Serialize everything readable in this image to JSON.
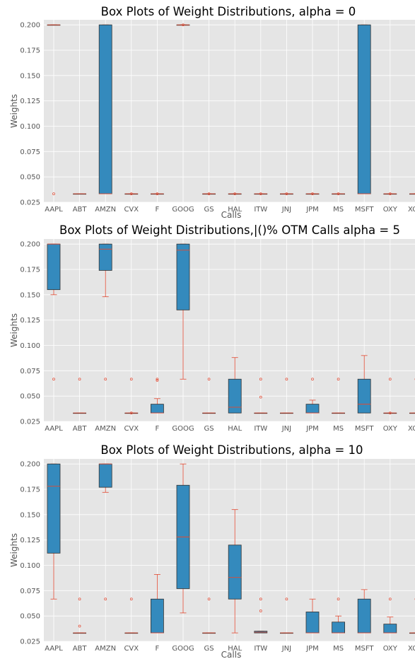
{
  "colors": {
    "background": "#e5e5e5",
    "grid": "#ffffff",
    "box_fill": "#348abd",
    "box_edge": "#333333",
    "median": "#e24a33",
    "whisker": "#e24a33",
    "flier": "#e24a33"
  },
  "chart_data": [
    {
      "type": "box",
      "title": "Box Plots of Weight Distributions, alpha = 0",
      "xlabel": "Calls",
      "ylabel": "Weights",
      "ylim": [
        0.025,
        0.205
      ],
      "yticks": [
        "0.025",
        "0.050",
        "0.075",
        "0.100",
        "0.125",
        "0.150",
        "0.175",
        "0.200"
      ],
      "grid": true,
      "categories": [
        "AAPL",
        "ABT",
        "AMZN",
        "CVX",
        "F",
        "GOOG",
        "GS",
        "HAL",
        "ITW",
        "JNJ",
        "JPM",
        "MS",
        "MSFT",
        "OXY",
        "XOM"
      ],
      "boxes": [
        {
          "q1": 0.2,
          "median": 0.2,
          "q3": 0.2,
          "whisker_low": 0.2,
          "whisker_high": 0.2,
          "fliers": [
            0.0333
          ]
        },
        {
          "q1": 0.0333,
          "median": 0.0333,
          "q3": 0.0333,
          "whisker_low": 0.0333,
          "whisker_high": 0.0333,
          "fliers": []
        },
        {
          "q1": 0.0333,
          "median": 0.0333,
          "q3": 0.2,
          "whisker_low": 0.0333,
          "whisker_high": 0.2,
          "fliers": []
        },
        {
          "q1": 0.0333,
          "median": 0.0333,
          "q3": 0.0333,
          "whisker_low": 0.0333,
          "whisker_high": 0.0333,
          "fliers": [
            0.0333
          ]
        },
        {
          "q1": 0.0333,
          "median": 0.0333,
          "q3": 0.0333,
          "whisker_low": 0.0333,
          "whisker_high": 0.0333,
          "fliers": [
            0.0333
          ]
        },
        {
          "q1": 0.2,
          "median": 0.2,
          "q3": 0.2,
          "whisker_low": 0.2,
          "whisker_high": 0.2,
          "fliers": [
            0.2
          ]
        },
        {
          "q1": 0.0333,
          "median": 0.0333,
          "q3": 0.0333,
          "whisker_low": 0.0333,
          "whisker_high": 0.0333,
          "fliers": [
            0.0333
          ]
        },
        {
          "q1": 0.0333,
          "median": 0.0333,
          "q3": 0.0333,
          "whisker_low": 0.0333,
          "whisker_high": 0.0333,
          "fliers": [
            0.0333
          ]
        },
        {
          "q1": 0.0333,
          "median": 0.0333,
          "q3": 0.0333,
          "whisker_low": 0.0333,
          "whisker_high": 0.0333,
          "fliers": [
            0.0333
          ]
        },
        {
          "q1": 0.0333,
          "median": 0.0333,
          "q3": 0.0333,
          "whisker_low": 0.0333,
          "whisker_high": 0.0333,
          "fliers": [
            0.0333
          ]
        },
        {
          "q1": 0.0333,
          "median": 0.0333,
          "q3": 0.0333,
          "whisker_low": 0.0333,
          "whisker_high": 0.0333,
          "fliers": [
            0.0333
          ]
        },
        {
          "q1": 0.0333,
          "median": 0.0333,
          "q3": 0.0333,
          "whisker_low": 0.0333,
          "whisker_high": 0.0333,
          "fliers": [
            0.0333
          ]
        },
        {
          "q1": 0.0333,
          "median": 0.0333,
          "q3": 0.2,
          "whisker_low": 0.0333,
          "whisker_high": 0.2,
          "fliers": []
        },
        {
          "q1": 0.0333,
          "median": 0.0333,
          "q3": 0.0333,
          "whisker_low": 0.0333,
          "whisker_high": 0.0333,
          "fliers": [
            0.0333
          ]
        },
        {
          "q1": 0.0333,
          "median": 0.0333,
          "q3": 0.0333,
          "whisker_low": 0.0333,
          "whisker_high": 0.0333,
          "fliers": [
            0.0333
          ]
        }
      ]
    },
    {
      "type": "box",
      "title": "Box Plots of Weight Distributions,|()% OTM Calls alpha = 5",
      "xlabel": "",
      "ylabel": "Weights",
      "ylim": [
        0.025,
        0.205
      ],
      "yticks": [
        "0.025",
        "0.050",
        "0.075",
        "0.100",
        "0.125",
        "0.150",
        "0.175",
        "0.200"
      ],
      "grid": true,
      "categories": [
        "AAPL",
        "ABT",
        "AMZN",
        "CVX",
        "F",
        "GOOG",
        "GS",
        "HAL",
        "ITW",
        "JNJ",
        "JPM",
        "MS",
        "MSFT",
        "OXY",
        "XOM"
      ],
      "boxes": [
        {
          "q1": 0.155,
          "median": 0.2,
          "q3": 0.2,
          "whisker_low": 0.15,
          "whisker_high": 0.2,
          "fliers": [
            0.0667
          ]
        },
        {
          "q1": 0.0333,
          "median": 0.0333,
          "q3": 0.0333,
          "whisker_low": 0.0333,
          "whisker_high": 0.0333,
          "fliers": [
            0.0667
          ]
        },
        {
          "q1": 0.174,
          "median": 0.195,
          "q3": 0.2,
          "whisker_low": 0.148,
          "whisker_high": 0.2,
          "fliers": [
            0.0667
          ]
        },
        {
          "q1": 0.0333,
          "median": 0.0333,
          "q3": 0.0333,
          "whisker_low": 0.0333,
          "whisker_high": 0.0333,
          "fliers": [
            0.0667,
            0.0333
          ]
        },
        {
          "q1": 0.0333,
          "median": 0.0333,
          "q3": 0.042,
          "whisker_low": 0.0333,
          "whisker_high": 0.0475,
          "fliers": [
            0.0667,
            0.0655
          ]
        },
        {
          "q1": 0.135,
          "median": 0.194,
          "q3": 0.2,
          "whisker_low": 0.0667,
          "whisker_high": 0.2,
          "fliers": []
        },
        {
          "q1": 0.0333,
          "median": 0.0333,
          "q3": 0.0333,
          "whisker_low": 0.0333,
          "whisker_high": 0.0333,
          "fliers": [
            0.0667
          ]
        },
        {
          "q1": 0.0333,
          "median": 0.039,
          "q3": 0.0667,
          "whisker_low": 0.0333,
          "whisker_high": 0.088,
          "fliers": []
        },
        {
          "q1": 0.0333,
          "median": 0.0333,
          "q3": 0.0333,
          "whisker_low": 0.0333,
          "whisker_high": 0.0333,
          "fliers": [
            0.0667,
            0.049
          ]
        },
        {
          "q1": 0.0333,
          "median": 0.0333,
          "q3": 0.0333,
          "whisker_low": 0.0333,
          "whisker_high": 0.0333,
          "fliers": [
            0.0667
          ]
        },
        {
          "q1": 0.0333,
          "median": 0.0333,
          "q3": 0.042,
          "whisker_low": 0.0333,
          "whisker_high": 0.046,
          "fliers": [
            0.0667
          ]
        },
        {
          "q1": 0.0333,
          "median": 0.0333,
          "q3": 0.0333,
          "whisker_low": 0.0333,
          "whisker_high": 0.0333,
          "fliers": [
            0.0667
          ]
        },
        {
          "q1": 0.0333,
          "median": 0.042,
          "q3": 0.0667,
          "whisker_low": 0.0333,
          "whisker_high": 0.09,
          "fliers": []
        },
        {
          "q1": 0.0333,
          "median": 0.0333,
          "q3": 0.0333,
          "whisker_low": 0.0333,
          "whisker_high": 0.0333,
          "fliers": [
            0.0667,
            0.0333
          ]
        },
        {
          "q1": 0.0333,
          "median": 0.0333,
          "q3": 0.0333,
          "whisker_low": 0.0333,
          "whisker_high": 0.0333,
          "fliers": [
            0.0667
          ]
        }
      ]
    },
    {
      "type": "box",
      "title": "Box Plots of Weight Distributions, alpha = 10",
      "xlabel": "Calls",
      "ylabel": "Weights",
      "ylim": [
        0.025,
        0.205
      ],
      "yticks": [
        "0.025",
        "0.050",
        "0.075",
        "0.100",
        "0.125",
        "0.150",
        "0.175",
        "0.200"
      ],
      "grid": true,
      "categories": [
        "AAPL",
        "ABT",
        "AMZN",
        "CVX",
        "F",
        "GOOG",
        "GS",
        "HAL",
        "ITW",
        "JNJ",
        "JPM",
        "MS",
        "MSFT",
        "OXY",
        "XOM"
      ],
      "boxes": [
        {
          "q1": 0.112,
          "median": 0.178,
          "q3": 0.2,
          "whisker_low": 0.0667,
          "whisker_high": 0.2,
          "fliers": []
        },
        {
          "q1": 0.0333,
          "median": 0.0333,
          "q3": 0.0333,
          "whisker_low": 0.0333,
          "whisker_high": 0.0333,
          "fliers": [
            0.0667,
            0.04
          ]
        },
        {
          "q1": 0.177,
          "median": 0.2,
          "q3": 0.2,
          "whisker_low": 0.172,
          "whisker_high": 0.2,
          "fliers": [
            0.0667
          ]
        },
        {
          "q1": 0.0333,
          "median": 0.0333,
          "q3": 0.0333,
          "whisker_low": 0.0333,
          "whisker_high": 0.0333,
          "fliers": [
            0.0667
          ]
        },
        {
          "q1": 0.0333,
          "median": 0.0333,
          "q3": 0.0667,
          "whisker_low": 0.0333,
          "whisker_high": 0.091,
          "fliers": []
        },
        {
          "q1": 0.077,
          "median": 0.128,
          "q3": 0.179,
          "whisker_low": 0.053,
          "whisker_high": 0.2,
          "fliers": []
        },
        {
          "q1": 0.0333,
          "median": 0.0333,
          "q3": 0.0333,
          "whisker_low": 0.0333,
          "whisker_high": 0.0333,
          "fliers": [
            0.0667
          ]
        },
        {
          "q1": 0.0667,
          "median": 0.088,
          "q3": 0.12,
          "whisker_low": 0.0333,
          "whisker_high": 0.155,
          "fliers": []
        },
        {
          "q1": 0.0333,
          "median": 0.034,
          "q3": 0.035,
          "whisker_low": 0.0333,
          "whisker_high": 0.035,
          "fliers": [
            0.0667,
            0.055
          ]
        },
        {
          "q1": 0.0333,
          "median": 0.0333,
          "q3": 0.0333,
          "whisker_low": 0.0333,
          "whisker_high": 0.0333,
          "fliers": [
            0.0667
          ]
        },
        {
          "q1": 0.0333,
          "median": 0.0333,
          "q3": 0.054,
          "whisker_low": 0.0333,
          "whisker_high": 0.0667,
          "fliers": []
        },
        {
          "q1": 0.0333,
          "median": 0.0333,
          "q3": 0.044,
          "whisker_low": 0.0333,
          "whisker_high": 0.05,
          "fliers": [
            0.0667
          ]
        },
        {
          "q1": 0.0333,
          "median": 0.0333,
          "q3": 0.0667,
          "whisker_low": 0.0333,
          "whisker_high": 0.076,
          "fliers": []
        },
        {
          "q1": 0.0333,
          "median": 0.0333,
          "q3": 0.042,
          "whisker_low": 0.0333,
          "whisker_high": 0.049,
          "fliers": [
            0.0667
          ]
        },
        {
          "q1": 0.0333,
          "median": 0.0333,
          "q3": 0.0333,
          "whisker_low": 0.0333,
          "whisker_high": 0.0333,
          "fliers": [
            0.0667
          ]
        }
      ]
    }
  ]
}
